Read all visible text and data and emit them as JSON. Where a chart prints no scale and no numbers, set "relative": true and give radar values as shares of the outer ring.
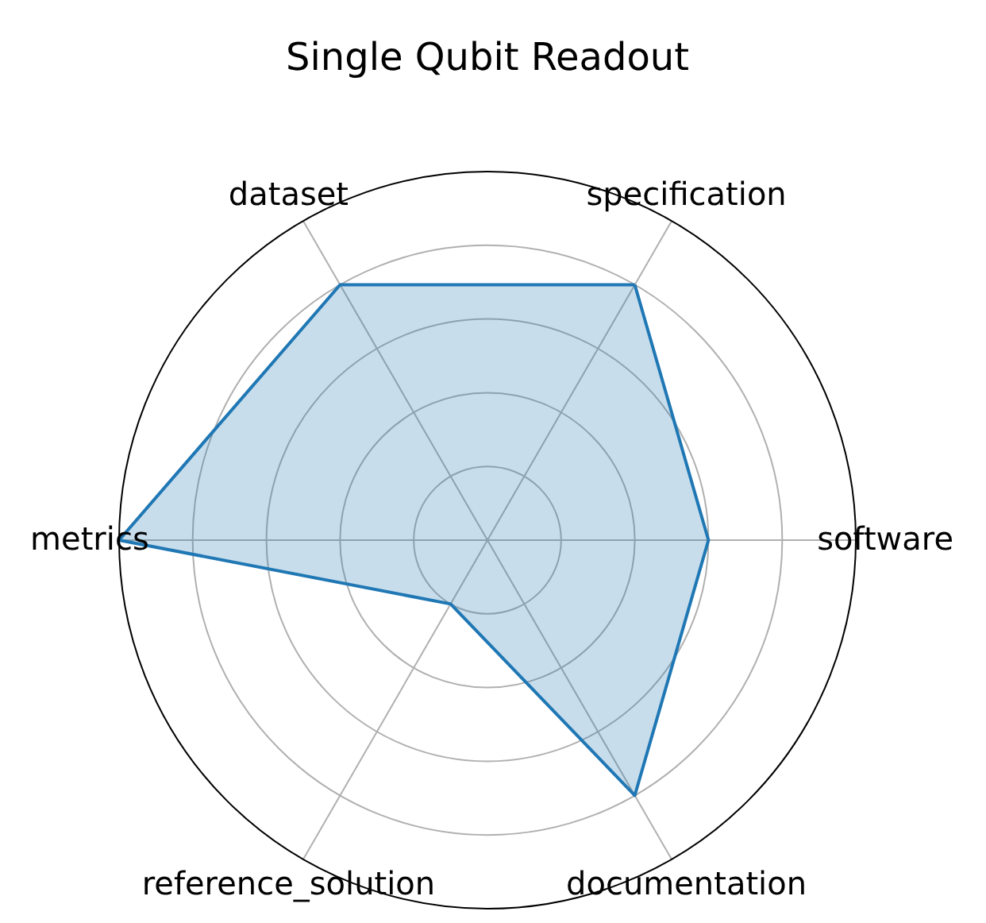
{
  "chart_data": {
    "type": "radar",
    "title": "Single Qubit Readout",
    "categories": [
      "specification",
      "software",
      "documentation",
      "reference_solution",
      "metrics",
      "dataset"
    ],
    "series": [
      {
        "color": "#1f77b4",
        "values": [
          0.8,
          0.6,
          0.8,
          0.2,
          1.0,
          0.8
        ]
      }
    ],
    "relative": true,
    "grid": true,
    "line_style": "solid"
  }
}
